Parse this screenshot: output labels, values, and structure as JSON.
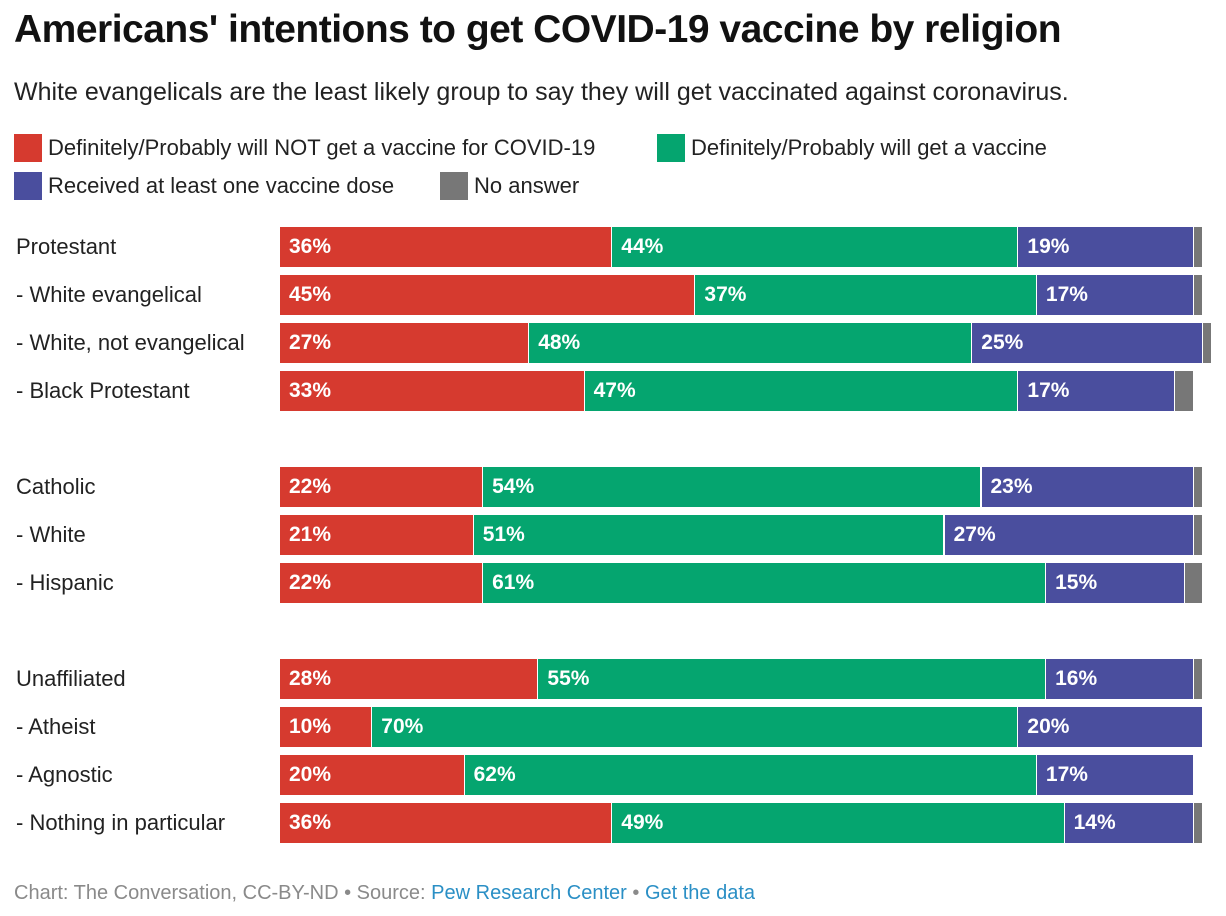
{
  "header": {
    "title": "Americans' intentions to get COVID-19 vaccine by religion",
    "subtitle": "White evangelicals are the least likely group to say they will get vaccinated against coronavirus."
  },
  "colors": {
    "not_get": "#d63a2f",
    "will_get": "#05a56f",
    "received": "#4a4e9e",
    "no_answer": "#777777"
  },
  "legend": [
    {
      "key": "not_get",
      "label": "Definitely/Probably will NOT get a vaccine for COVID-19"
    },
    {
      "key": "will_get",
      "label": "Definitely/Probably will get a vaccine"
    },
    {
      "key": "received",
      "label": "Received at least one vaccine dose"
    },
    {
      "key": "no_answer",
      "label": "No answer"
    }
  ],
  "chart_data": {
    "type": "bar",
    "orientation": "horizontal",
    "stacked": true,
    "legend_position": "top",
    "grid": false,
    "xlim": [
      0,
      100
    ],
    "categories": [
      "Protestant",
      "- White evangelical",
      "- White, not evangelical",
      "- Black Protestant",
      "Catholic",
      "- White",
      "- Hispanic",
      "Unaffiliated",
      "- Atheist",
      "- Agnostic",
      "- Nothing in particular"
    ],
    "groups": [
      {
        "rows": [
          0,
          1,
          2,
          3
        ]
      },
      {
        "rows": [
          4,
          5,
          6
        ]
      },
      {
        "rows": [
          7,
          8,
          9,
          10
        ]
      }
    ],
    "series": [
      {
        "key": "not_get",
        "name": "Definitely/Probably will NOT get a vaccine for COVID-19",
        "values": [
          36,
          45,
          27,
          33,
          22,
          21,
          22,
          28,
          10,
          20,
          36
        ],
        "labels": [
          "36%",
          "45%",
          "27%",
          "33%",
          "22%",
          "21%",
          "22%",
          "28%",
          "10%",
          "20%",
          "36%"
        ]
      },
      {
        "key": "will_get",
        "name": "Definitely/Probably will get a vaccine",
        "values": [
          44,
          37,
          48,
          47,
          54,
          51,
          61,
          55,
          70,
          62,
          49
        ],
        "labels": [
          "44%",
          "37%",
          "48%",
          "47%",
          "54%",
          "51%",
          "61%",
          "55%",
          "70%",
          "62%",
          "49%"
        ]
      },
      {
        "key": "received",
        "name": "Received at least one vaccine dose",
        "values": [
          19,
          17,
          25,
          17,
          23,
          27,
          15,
          16,
          20,
          17,
          14
        ],
        "labels": [
          "19%",
          "17%",
          "25%",
          "17%",
          "23%",
          "27%",
          "15%",
          "16%",
          "20%",
          "17%",
          "14%"
        ]
      },
      {
        "key": "no_answer",
        "name": "No answer",
        "values": [
          1,
          1,
          1,
          2,
          1,
          1,
          2,
          1,
          0,
          0,
          1
        ],
        "labels": [
          "",
          "",
          "",
          "",
          "",
          "",
          "",
          "",
          "",
          "",
          ""
        ]
      }
    ]
  },
  "footer": {
    "prefix": "Chart: The Conversation, CC-BY-ND • Source: ",
    "source_link": "Pew Research Center",
    "separator": " • ",
    "data_link": "Get the data"
  }
}
